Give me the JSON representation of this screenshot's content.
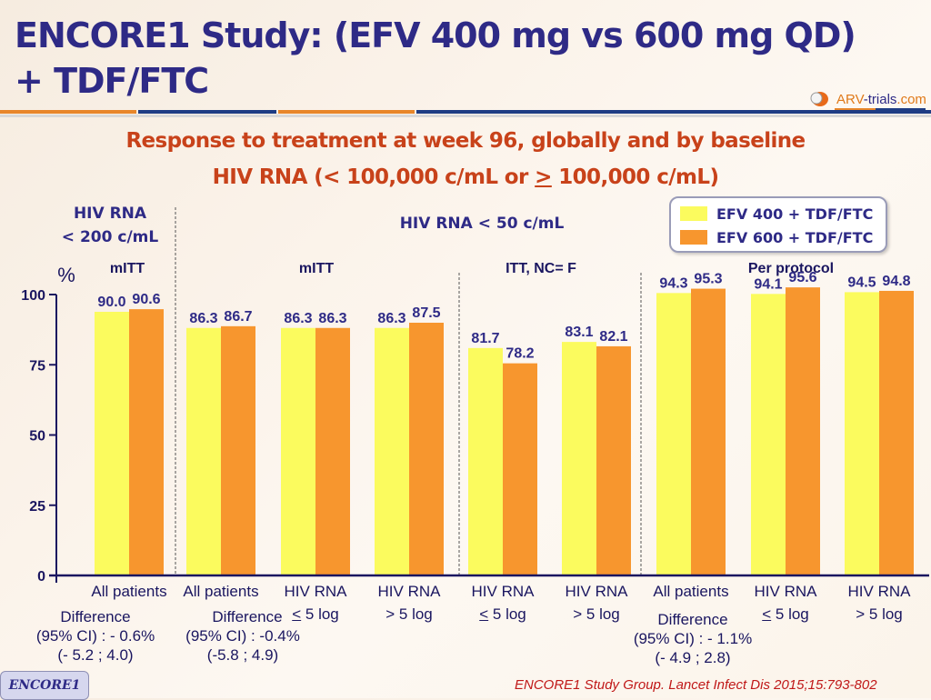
{
  "header": {
    "title_line1": "ENCORE1 Study: (EFV 400 mg vs 600 mg QD)",
    "title_line2": "+ TDF/FTC",
    "logo_text_a": "ARV",
    "logo_text_b": "-trials",
    "logo_text_c": ".com"
  },
  "subtitle": {
    "line1": "Response to treatment at week 96, globally and by baseline",
    "line2_a": "HIV RNA (< 100,000 c/mL or ",
    "line2_ge": ">",
    "line2_b": " 100,000 c/mL)"
  },
  "section_headers": {
    "hiv200_line1": "HIV RNA",
    "hiv200_line2": "< 200 c/mL",
    "hiv50": "HIV RNA < 50 c/mL"
  },
  "groups": [
    "mITT",
    "mITT",
    "ITT, NC= F",
    "Per protocol"
  ],
  "colors": {
    "efv400": "#fbfb5e",
    "efv600": "#f7962e",
    "axis": "#1a1660",
    "label": "#2e2a86"
  },
  "chart_data": {
    "type": "bar",
    "title": "Response to treatment at week 96, globally and by baseline HIV RNA (< 100,000 c/mL or ≥ 100,000 c/mL)",
    "ylabel": "%",
    "xlabel": "",
    "ylim": [
      0,
      100
    ],
    "yticks": [
      0,
      25,
      50,
      75,
      100
    ],
    "legend_position": "top-right",
    "categories": [
      {
        "line1": "All patients",
        "line2": ""
      },
      {
        "line1": "All patients",
        "line2": ""
      },
      {
        "line1": "HIV RNA",
        "line2": "≤ 5 log"
      },
      {
        "line1": "HIV RNA",
        "line2": "> 5 log"
      },
      {
        "line1": "HIV RNA",
        "line2": "≤ 5 log"
      },
      {
        "line1": "HIV RNA",
        "line2": "> 5 log"
      },
      {
        "line1": "All patients",
        "line2": ""
      },
      {
        "line1": "HIV RNA",
        "line2": "≤ 5 log"
      },
      {
        "line1": "HIV RNA",
        "line2": "> 5 log"
      }
    ],
    "series": [
      {
        "name": "EFV 400 + TDF/FTC",
        "values": [
          90.0,
          86.3,
          86.3,
          86.3,
          81.7,
          83.1,
          94.3,
          94.1,
          94.5
        ]
      },
      {
        "name": "EFV 600 + TDF/FTC",
        "values": [
          90.6,
          86.7,
          86.3,
          87.5,
          78.2,
          82.1,
          95.3,
          95.6,
          94.8
        ]
      }
    ],
    "value_labels": [
      [
        "90.0",
        "86.3",
        "86.3",
        "86.3",
        "81.7",
        "83.1",
        "94.3",
        "94.1",
        "94.5"
      ],
      [
        "90.6",
        "86.7",
        "86.3",
        "87.5",
        "78.2",
        "82.1",
        "95.3",
        "95.6",
        "94.8"
      ]
    ],
    "differences": [
      {
        "line1": "Difference",
        "line2": "(95% CI) : - 0.6%",
        "line3": "(- 5.2 ; 4.0)"
      },
      {
        "line1": "Difference",
        "line2": "(95% CI) : -0.4%",
        "line3": "(-5.8 ; 4.9)"
      },
      {
        "line1": "Difference",
        "line2": "(95% CI) : - 1.1%",
        "line3": "(- 4.9 ; 2.8)"
      }
    ]
  },
  "footer": {
    "badge": "ENCORE1",
    "citation": "ENCORE1 Study Group. Lancet Infect Dis 2015;15:793-802"
  }
}
